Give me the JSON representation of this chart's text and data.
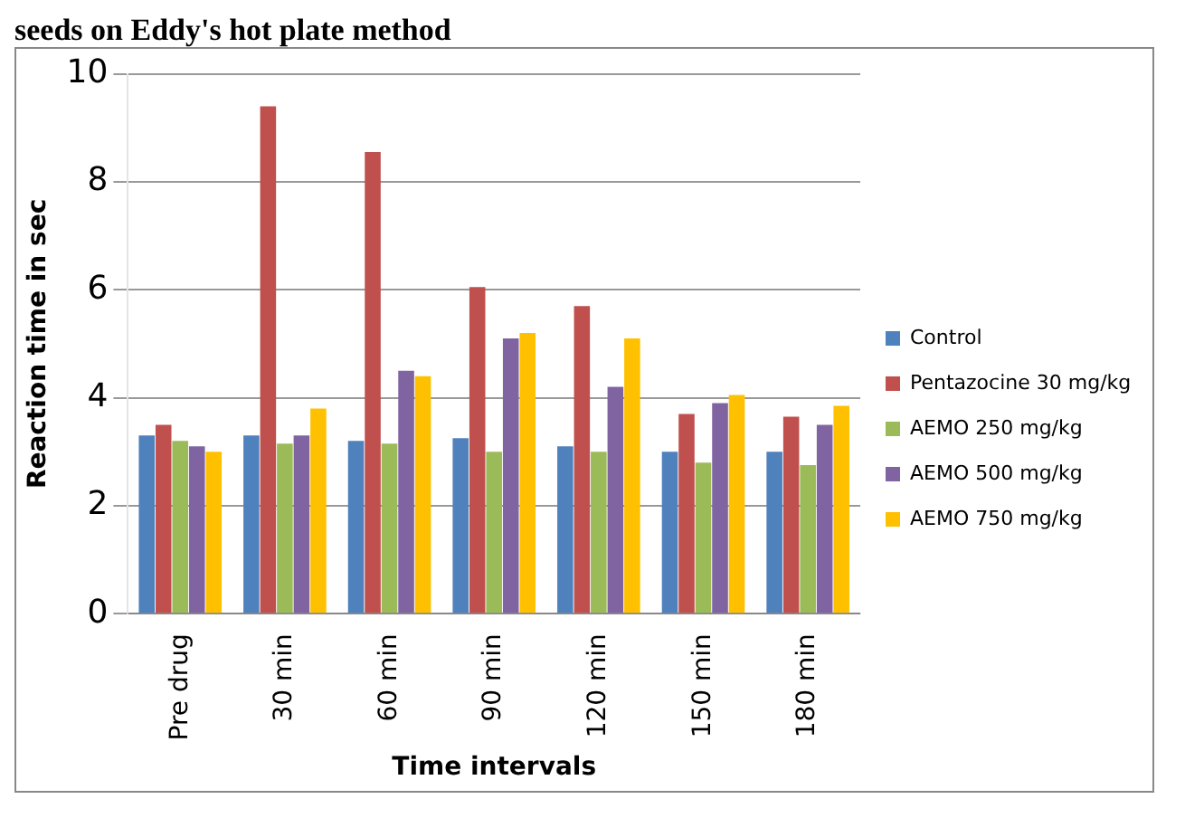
{
  "chart_data": {
    "type": "bar",
    "title": "seeds on Eddy's hot plate method",
    "xlabel": "Time intervals",
    "ylabel": "Reaction time in sec",
    "categories": [
      "Pre drug",
      "30 min",
      "60 min",
      "90 min",
      "120 min",
      "150 min",
      "180 min"
    ],
    "series": [
      {
        "name": "Control",
        "color": "#4f81bd",
        "values": [
          3.3,
          3.3,
          3.2,
          3.25,
          3.1,
          3.0,
          3.0
        ]
      },
      {
        "name": "Pentazocine 30 mg/kg",
        "color": "#c0504d",
        "values": [
          3.5,
          9.4,
          8.55,
          6.05,
          5.7,
          3.7,
          3.65
        ]
      },
      {
        "name": "AEMO 250 mg/kg",
        "color": "#9bbb59",
        "values": [
          3.2,
          3.15,
          3.15,
          3.0,
          3.0,
          2.8,
          2.75
        ]
      },
      {
        "name": "AEMO 500 mg/kg",
        "color": "#8064a2",
        "values": [
          3.1,
          3.3,
          4.5,
          5.1,
          4.2,
          3.9,
          3.5
        ]
      },
      {
        "name": "AEMO 750 mg/kg",
        "color": "#ffc000",
        "values": [
          3.0,
          3.8,
          4.4,
          5.2,
          5.1,
          4.05,
          3.85
        ]
      }
    ],
    "ylim": [
      0,
      10
    ],
    "yticks": [
      0,
      2,
      4,
      6,
      8,
      10
    ],
    "grid": "y",
    "legend": "right"
  }
}
